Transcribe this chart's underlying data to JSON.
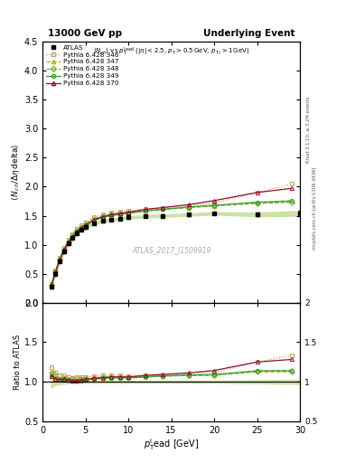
{
  "title_left": "13000 GeV pp",
  "title_right": "Underlying Event",
  "watermark": "ATLAS_2017_I1509919",
  "right_label_bottom": "mcplots.cern.ch [arXiv:1306.3436]",
  "right_label_top": "Rivet 3.1.10, ≥ 3.2M events",
  "ylabel_main": "⟨ N_{ch} / Δη delta⟩",
  "ylabel_ratio": "Ratio to ATLAS",
  "ylim_main": [
    0.0,
    4.5
  ],
  "ylim_ratio": [
    0.5,
    2.0
  ],
  "xlim": [
    0,
    30
  ],
  "atlas_x": [
    1.0,
    1.5,
    2.0,
    2.5,
    3.0,
    3.5,
    4.0,
    4.5,
    5.0,
    6.0,
    7.0,
    8.0,
    9.0,
    10.0,
    12.0,
    14.0,
    17.0,
    20.0,
    25.0,
    30.0
  ],
  "atlas_y": [
    0.27,
    0.5,
    0.72,
    0.88,
    1.02,
    1.12,
    1.2,
    1.26,
    1.3,
    1.37,
    1.41,
    1.43,
    1.45,
    1.47,
    1.49,
    1.5,
    1.52,
    1.54,
    1.52,
    1.54
  ],
  "atlas_yerr": [
    0.02,
    0.02,
    0.02,
    0.02,
    0.02,
    0.02,
    0.02,
    0.02,
    0.02,
    0.02,
    0.02,
    0.02,
    0.02,
    0.02,
    0.02,
    0.02,
    0.02,
    0.02,
    0.03,
    0.04
  ],
  "py346_x": [
    1.0,
    1.5,
    2.0,
    2.5,
    3.0,
    3.5,
    4.0,
    4.5,
    5.0,
    6.0,
    7.0,
    8.0,
    9.0,
    10.0,
    12.0,
    14.0,
    17.0,
    20.0,
    25.0,
    29.0
  ],
  "py346_y": [
    0.32,
    0.56,
    0.78,
    0.95,
    1.08,
    1.18,
    1.27,
    1.33,
    1.38,
    1.47,
    1.52,
    1.55,
    1.57,
    1.58,
    1.61,
    1.63,
    1.67,
    1.72,
    1.9,
    2.05
  ],
  "py346_color": "#c8a060",
  "py346_linestyle": "dotted",
  "py346_marker": "s",
  "py347_x": [
    1.0,
    1.5,
    2.0,
    2.5,
    3.0,
    3.5,
    4.0,
    4.5,
    5.0,
    6.0,
    7.0,
    8.0,
    9.0,
    10.0,
    12.0,
    14.0,
    17.0,
    20.0,
    25.0,
    29.0
  ],
  "py347_y": [
    0.3,
    0.53,
    0.75,
    0.92,
    1.05,
    1.15,
    1.23,
    1.3,
    1.35,
    1.44,
    1.49,
    1.52,
    1.54,
    1.56,
    1.59,
    1.61,
    1.64,
    1.67,
    1.73,
    1.76
  ],
  "py347_color": "#b0b020",
  "py347_linestyle": "dashed",
  "py347_marker": "^",
  "py348_x": [
    1.0,
    1.5,
    2.0,
    2.5,
    3.0,
    3.5,
    4.0,
    4.5,
    5.0,
    6.0,
    7.0,
    8.0,
    9.0,
    10.0,
    12.0,
    14.0,
    17.0,
    20.0,
    25.0,
    29.0
  ],
  "py348_y": [
    0.3,
    0.54,
    0.75,
    0.92,
    1.05,
    1.16,
    1.24,
    1.3,
    1.35,
    1.44,
    1.49,
    1.52,
    1.54,
    1.56,
    1.59,
    1.61,
    1.64,
    1.67,
    1.71,
    1.73
  ],
  "py348_color": "#80b030",
  "py348_linestyle": "dashed",
  "py348_marker": "D",
  "py349_x": [
    1.0,
    1.5,
    2.0,
    2.5,
    3.0,
    3.5,
    4.0,
    4.5,
    5.0,
    6.0,
    7.0,
    8.0,
    9.0,
    10.0,
    12.0,
    14.0,
    17.0,
    20.0,
    25.0,
    29.0
  ],
  "py349_y": [
    0.29,
    0.52,
    0.74,
    0.91,
    1.04,
    1.14,
    1.22,
    1.28,
    1.33,
    1.42,
    1.47,
    1.5,
    1.52,
    1.54,
    1.58,
    1.61,
    1.65,
    1.68,
    1.73,
    1.75
  ],
  "py349_color": "#30a030",
  "py349_linestyle": "solid",
  "py349_marker": "o",
  "py370_x": [
    1.0,
    1.5,
    2.0,
    2.5,
    3.0,
    3.5,
    4.0,
    4.5,
    5.0,
    6.0,
    7.0,
    8.0,
    9.0,
    10.0,
    12.0,
    14.0,
    17.0,
    20.0,
    25.0,
    29.0
  ],
  "py370_y": [
    0.29,
    0.52,
    0.74,
    0.91,
    1.04,
    1.14,
    1.22,
    1.29,
    1.34,
    1.43,
    1.48,
    1.52,
    1.54,
    1.56,
    1.61,
    1.64,
    1.69,
    1.76,
    1.9,
    1.97
  ],
  "py370_color": "#901030",
  "py370_linestyle": "solid",
  "py370_marker": "^",
  "atlas_band_color": "#c8e0a0",
  "legend_labels": [
    "ATLAS",
    "Pythia 6.428 346",
    "Pythia 6.428 347",
    "Pythia 6.428 348",
    "Pythia 6.428 349",
    "Pythia 6.428 370"
  ]
}
